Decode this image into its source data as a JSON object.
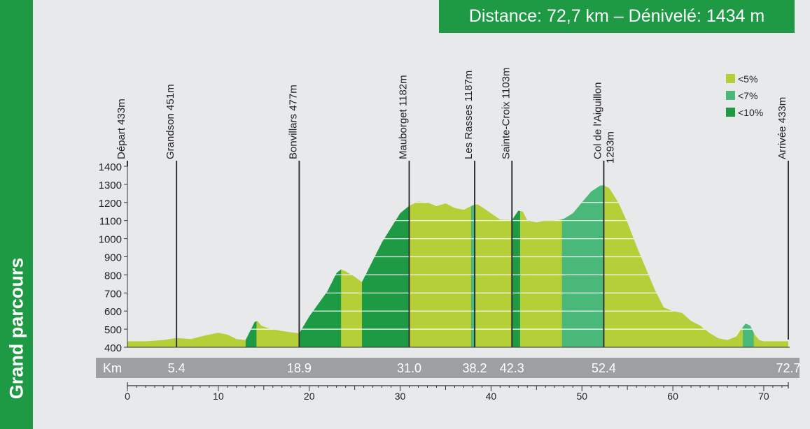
{
  "sidebar_title": "Grand parcours",
  "banner": "Distance: 72,7 km – Dénivelé: 1434 m",
  "colors": {
    "lt5": "#b5cf39",
    "lt7": "#49b878",
    "lt10": "#1e9a45",
    "bar": "#9d9fa2",
    "green": "#1e9a45"
  },
  "chart_data": {
    "type": "area",
    "title": "",
    "xlabel": "",
    "ylabel": "",
    "ylim": [
      400,
      1400
    ],
    "y_ticks": [
      400,
      500,
      600,
      700,
      800,
      900,
      1000,
      1100,
      1200,
      1300,
      1400
    ],
    "xlim": [
      0,
      72.7
    ],
    "x_ticks": [
      0,
      10,
      20,
      30,
      40,
      50,
      60,
      70
    ],
    "km_label": "Km",
    "km_markers": [
      "5.4",
      "18.9",
      "31.0",
      "38.2",
      "42.3",
      "52.4",
      "72.7"
    ],
    "legend": [
      {
        "label": "<5%",
        "color": "#b5cf39"
      },
      {
        "label": "<7%",
        "color": "#49b878"
      },
      {
        "label": "<10%",
        "color": "#1e9a45"
      }
    ],
    "waypoints": [
      {
        "km": 0,
        "label": "Départ 433m"
      },
      {
        "km": 5.4,
        "label": "Grandson 451m"
      },
      {
        "km": 18.9,
        "label": "Bonvillars 477m"
      },
      {
        "km": 31.0,
        "label": "Mauborget 1182m"
      },
      {
        "km": 38.2,
        "label": "Les Rasses 1187m"
      },
      {
        "km": 42.3,
        "label": "Sainte-Croix 1103m"
      },
      {
        "km": 52.4,
        "label": "Col de l'Aiguillon",
        "label2": "1293m"
      },
      {
        "km": 72.7,
        "label": "Arrivée 433m"
      }
    ],
    "profile": {
      "x": [
        0,
        2,
        4,
        5.4,
        7,
        8.5,
        10,
        11,
        12,
        13,
        13.5,
        14,
        14.3,
        14.7,
        15.5,
        17,
        18.9,
        20,
        22,
        23,
        23.5,
        24,
        25,
        25.8,
        26.5,
        28,
        30,
        31,
        32,
        33,
        34,
        35,
        36,
        37,
        38,
        38.5,
        39,
        40,
        41,
        42.3,
        43,
        43.5,
        44,
        45,
        46,
        47,
        48,
        49,
        50,
        51,
        52,
        52.4,
        53,
        54,
        55,
        56,
        57,
        58,
        59,
        60,
        61,
        62,
        63,
        64,
        65,
        66,
        67,
        67.5,
        68,
        68.5,
        69,
        69.5,
        70,
        71,
        72.7
      ],
      "y": [
        433,
        433,
        440,
        451,
        445,
        465,
        480,
        470,
        445,
        440,
        490,
        540,
        545,
        520,
        505,
        490,
        477,
        570,
        710,
        810,
        830,
        820,
        790,
        760,
        830,
        980,
        1140,
        1182,
        1205,
        1200,
        1180,
        1195,
        1170,
        1160,
        1185,
        1190,
        1175,
        1140,
        1105,
        1103,
        1155,
        1150,
        1100,
        1090,
        1100,
        1100,
        1110,
        1140,
        1200,
        1260,
        1293,
        1295,
        1280,
        1200,
        1090,
        960,
        840,
        720,
        620,
        600,
        590,
        545,
        520,
        480,
        450,
        440,
        460,
        500,
        530,
        520,
        470,
        440,
        433,
        433,
        433
      ]
    },
    "gradient_bands": [
      {
        "from": 0,
        "to": 13,
        "class": "lt5"
      },
      {
        "from": 13,
        "to": 14.2,
        "class": "lt10"
      },
      {
        "from": 14.2,
        "to": 18.9,
        "class": "lt5"
      },
      {
        "from": 18.9,
        "to": 23.5,
        "class": "lt10"
      },
      {
        "from": 23.5,
        "to": 25.8,
        "class": "lt5"
      },
      {
        "from": 25.8,
        "to": 31,
        "class": "lt10"
      },
      {
        "from": 31,
        "to": 37.8,
        "class": "lt5"
      },
      {
        "from": 37.8,
        "to": 38.3,
        "class": "lt7"
      },
      {
        "from": 38.3,
        "to": 42.3,
        "class": "lt5"
      },
      {
        "from": 42.3,
        "to": 43.2,
        "class": "lt10"
      },
      {
        "from": 43.2,
        "to": 47.8,
        "class": "lt5"
      },
      {
        "from": 47.8,
        "to": 52.4,
        "class": "lt7"
      },
      {
        "from": 52.4,
        "to": 67.7,
        "class": "lt5"
      },
      {
        "from": 67.7,
        "to": 68.9,
        "class": "lt7"
      },
      {
        "from": 68.9,
        "to": 72.7,
        "class": "lt5"
      }
    ]
  }
}
